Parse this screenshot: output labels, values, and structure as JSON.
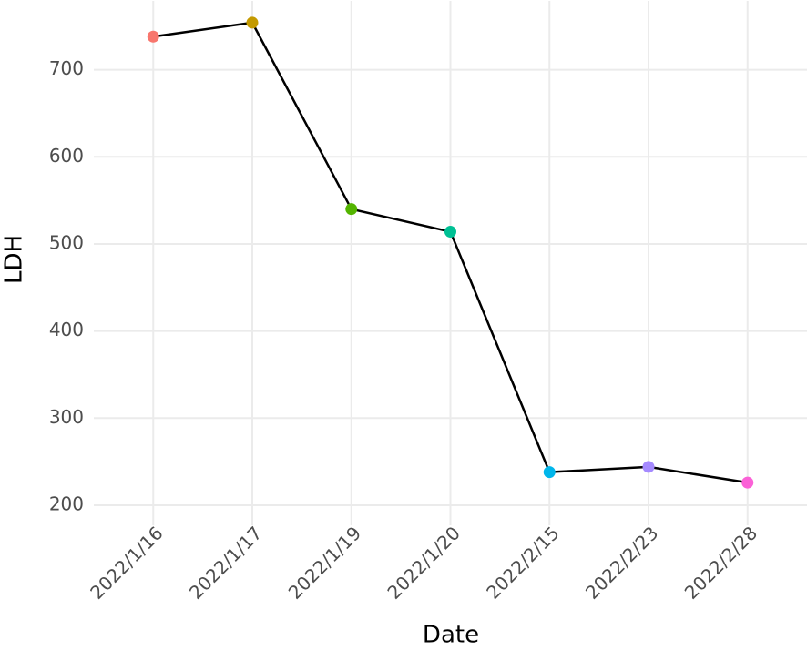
{
  "chart_data": {
    "type": "line",
    "x_label": "Date",
    "y_label": "LDH",
    "categories": [
      "2022/1/16",
      "2022/1/17",
      "2022/1/19",
      "2022/1/20",
      "2022/2/15",
      "2022/2/23",
      "2022/2/28"
    ],
    "values": [
      738,
      754,
      540,
      514,
      238,
      244,
      226
    ],
    "line_color": "#000000",
    "point_colors": [
      "#F8766D",
      "#C49A00",
      "#53B400",
      "#00C094",
      "#00B6EB",
      "#A58AFF",
      "#FB61D7"
    ],
    "ylim": [
      177,
      779
    ],
    "yticks": [
      200,
      300,
      400,
      500,
      600,
      700
    ],
    "grid": true
  }
}
